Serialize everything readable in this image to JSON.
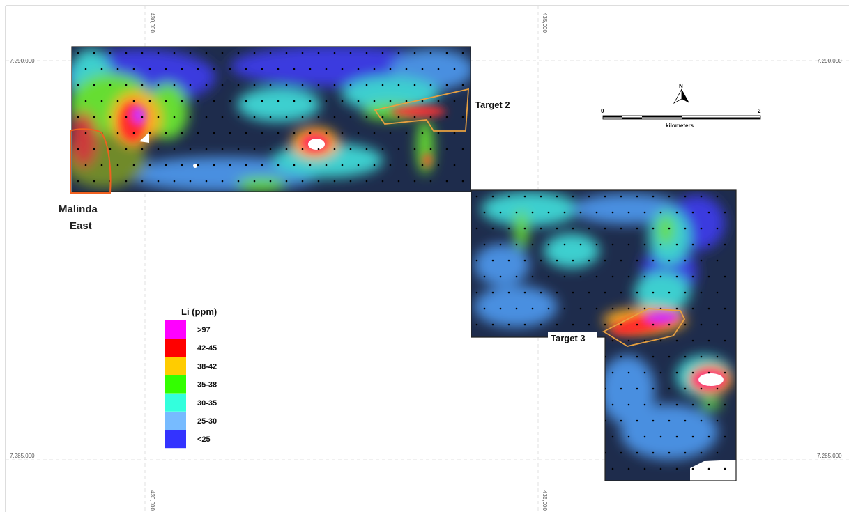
{
  "grid": {
    "easting_labels": [
      "430,000",
      "435,000"
    ],
    "northing_labels": [
      "7,290,000",
      "7,285,000"
    ]
  },
  "labels": {
    "target2": "Target 2",
    "target3": "Target 3",
    "malinda_line1": "Malinda",
    "malinda_line2": "East"
  },
  "legend": {
    "title": "Li (ppm)",
    "items": [
      {
        "label": ">97",
        "color": "#ff00ff"
      },
      {
        "label": "42-45",
        "color": "#ff0000"
      },
      {
        "label": "38-42",
        "color": "#ffcc00"
      },
      {
        "label": "35-38",
        "color": "#33ff00"
      },
      {
        "label": "30-35",
        "color": "#33ffdd"
      },
      {
        "label": "25-30",
        "color": "#77bbff"
      },
      {
        "label": "<25",
        "color": "#3333ff"
      }
    ]
  },
  "scale_bar": {
    "start": "0",
    "end": "2",
    "unit": "kilometers",
    "north": "N"
  },
  "colors": {
    "target_outline": "#e8a040",
    "malinda_outline": "#f06020",
    "background_low": "#1a2a4a"
  }
}
